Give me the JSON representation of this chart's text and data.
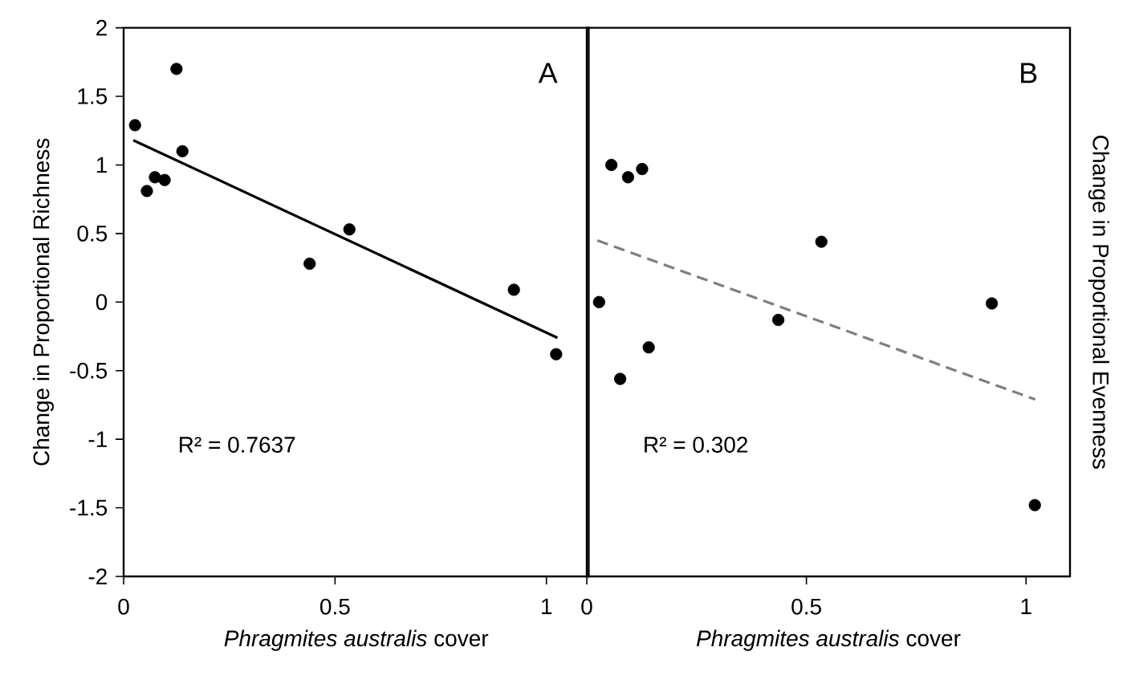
{
  "chart_data": [
    {
      "type": "scatter",
      "xlabel": "*Phragmites australis* cover",
      "ylabel": "Change in Proportional Richness",
      "xlim": [
        0,
        1.1
      ],
      "xticks": [
        0,
        0.5,
        1
      ],
      "ylim": [
        -2,
        2
      ],
      "yticks": [
        -2,
        -1.5,
        -1,
        -0.5,
        0,
        0.5,
        1,
        1.5,
        2
      ],
      "marker": "circle",
      "annotations": [
        "A",
        "R² = 0.7637"
      ],
      "series": [
        {
          "color": "#000000",
          "x": [
            0.027,
            0.125,
            0.139,
            0.055,
            0.074,
            0.097,
            0.44,
            0.534,
            0.923,
            1.023
          ],
          "values": [
            1.29,
            1.7,
            1.1,
            0.81,
            0.91,
            0.89,
            0.28,
            0.53,
            0.09,
            -0.38
          ]
        },
        {
          "type": "line",
          "color": "#000000",
          "line_style": "solid",
          "marker": "none",
          "x": [
            0.023,
            1.026
          ],
          "values": [
            1.18,
            -0.26
          ]
        }
      ]
    },
    {
      "type": "scatter",
      "xlabel": "*Phragmites australis* cover",
      "ylabel": "Change in Proportional Evenness",
      "xlim": [
        0,
        1.1
      ],
      "xticks": [
        0,
        0.5,
        1
      ],
      "ylim": [
        -2,
        2
      ],
      "yticks": [
        -2,
        -1.5,
        -1,
        -0.5,
        0,
        0.5,
        1,
        1.5,
        2
      ],
      "tick_labels": "x",
      "marker": "circle",
      "annotations": [
        "B",
        "R² = 0.302"
      ],
      "series": [
        {
          "color": "#000000",
          "x": [
            0.028,
            0.056,
            0.094,
            0.126,
            0.076,
            0.141,
            0.436,
            0.534,
            0.922,
            1.02
          ],
          "values": [
            0.0,
            1.0,
            0.91,
            0.97,
            -0.56,
            -0.33,
            -0.13,
            0.44,
            -0.01,
            -1.48
          ]
        },
        {
          "type": "line",
          "color": "#7f7f7f",
          "line_style": "dashed",
          "marker": "none",
          "x": [
            0.024,
            1.021
          ],
          "values": [
            0.45,
            -0.71
          ]
        }
      ]
    }
  ]
}
